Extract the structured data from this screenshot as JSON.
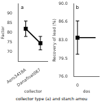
{
  "chart_data": [
    {
      "type": "line",
      "annotation": "a",
      "xlabel": "collector",
      "ylabel": "Factor",
      "categories": [
        "Aero3418A",
        "Danafloat067"
      ],
      "series": [
        {
          "values": [
            82.0,
            74.5
          ],
          "errors": [
            4.0,
            3.5
          ],
          "color": "#000000",
          "marker": "square"
        }
      ],
      "ylim": [
        65,
        95
      ],
      "yticks": [
        70,
        75,
        80,
        85,
        90
      ],
      "grid": false
    },
    {
      "type": "scatter",
      "annotation": "b",
      "xlabel": "dos",
      "ylabel": "Recovery of lead (%)",
      "x": [
        0,
        1.5
      ],
      "series": [
        {
          "type": "line",
          "values": [
            83.5,
            83.5
          ],
          "color": "#000000"
        },
        {
          "type": "scatter",
          "values": [
            83.5,
            null
          ],
          "errors": [
            3.2,
            null
          ],
          "color": "#000000",
          "marker": "square"
        }
      ],
      "xlim": [
        -0.3,
        1.8
      ],
      "xticks": [
        0
      ],
      "ylim": [
        76,
        90
      ],
      "yticks": [
        {
          "value": 76,
          "label": "76.0"
        },
        79.5,
        {
          "value": 83,
          "label": "83.0"
        },
        86.6,
        {
          "value": 90,
          "label": "90.0"
        }
      ],
      "grid": false
    }
  ],
  "annotation": "collector type (a) and starch amou"
}
